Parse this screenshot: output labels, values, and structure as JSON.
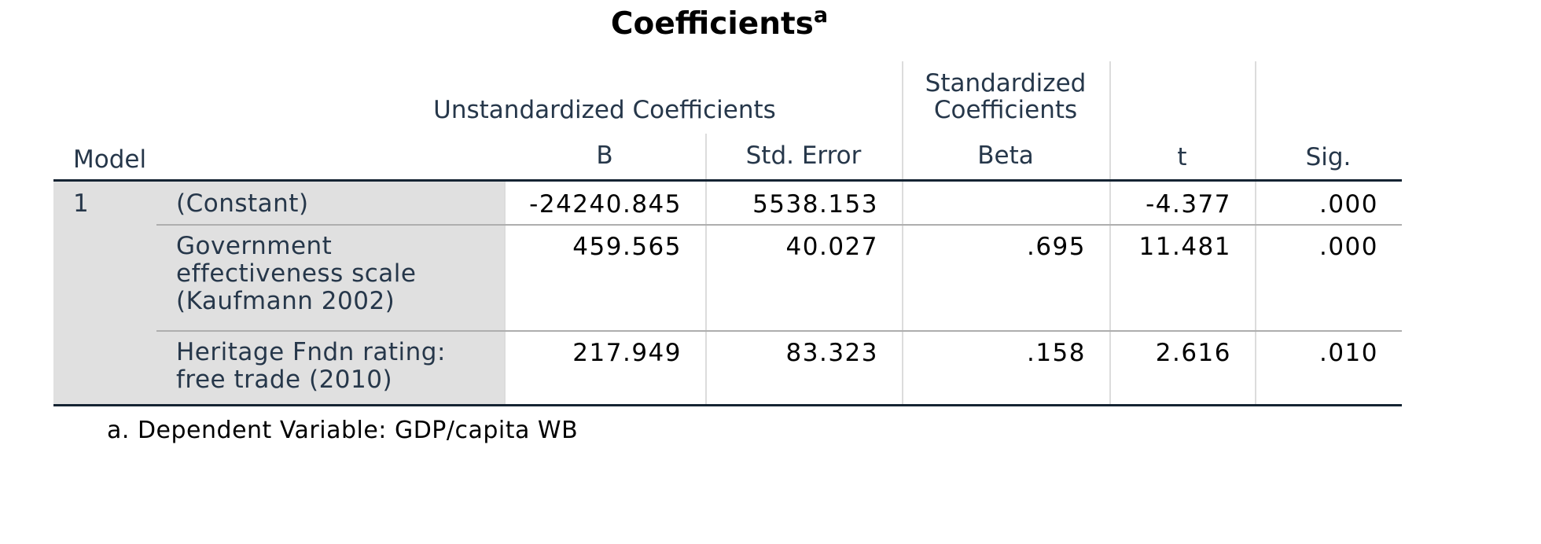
{
  "title": "Coefficients",
  "title_superscript": "a",
  "headers": {
    "model": "Model",
    "unstandardized": "Unstandardized Coefficients",
    "standardized_line1": "Standardized",
    "standardized_line2": "Coefficients",
    "b": "B",
    "std_error": "Std. Error",
    "beta": "Beta",
    "t": "t",
    "sig": "Sig."
  },
  "model_number": "1",
  "rows": [
    {
      "label_lines": [
        "(Constant)"
      ],
      "b": "-24240.845",
      "std_error": "5538.153",
      "beta": "",
      "t": "-4.377",
      "sig": ".000"
    },
    {
      "label_lines": [
        "Government",
        "effectiveness scale",
        "(Kaufmann 2002)"
      ],
      "b": "459.565",
      "std_error": "40.027",
      "beta": ".695",
      "t": "11.481",
      "sig": ".000"
    },
    {
      "label_lines": [
        "Heritage Fndn rating:",
        "free trade (2010)"
      ],
      "b": "217.949",
      "std_error": "83.323",
      "beta": ".158",
      "t": "2.616",
      "sig": ".010"
    }
  ],
  "footnote": "a. Dependent Variable: GDP/capita WB",
  "colors": {
    "header_text": "#26374a",
    "label_shade": "#e0e0e0",
    "rule_dark": "#152433",
    "rule_light": "#aeaeae",
    "grid": "#dcdcdc"
  }
}
